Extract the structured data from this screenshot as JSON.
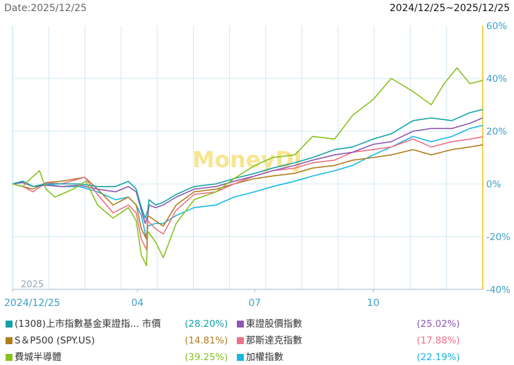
{
  "header": {
    "date_label": "Date:2025/12/25",
    "range_label": "2024/12/25~2025/12/25"
  },
  "colors": {
    "etf": "#13a3a6",
    "taiex_total_return": "#8e57b0",
    "sp500": "#b07d1c",
    "nasdaq": "#ef6f86",
    "sox": "#86c11e",
    "taiex": "#17b7e3",
    "axis": "#f4c10f",
    "grid": "#cfe8f3",
    "tick": "#3c9fc6",
    "watermark": "#f6e17d"
  },
  "chart_data": {
    "type": "line",
    "title": "",
    "watermark": "MoneyDJ",
    "year_label": "2025",
    "x_range": [
      "2024-12-25",
      "2025-12-25"
    ],
    "x_ticks": [
      {
        "date": "2024-12-25",
        "label": "2024/12/25"
      },
      {
        "date": "2025-04-01",
        "label": "04"
      },
      {
        "date": "2025-07-01",
        "label": "07"
      },
      {
        "date": "2025-10-01",
        "label": "10"
      }
    ],
    "y_axis": {
      "position": "right",
      "unit": "%",
      "ylim": [
        -40,
        60
      ],
      "ticks": [
        60,
        40,
        20,
        0,
        -20,
        -40
      ]
    },
    "y_tick_labels": [
      "60%",
      "40%",
      "20%",
      "0%",
      "-20%",
      "-40%"
    ],
    "series": [
      {
        "key": "etf",
        "name": "(1308)上市指數基金東證指... 市價",
        "final_label": "(28.20%)",
        "points": [
          [
            "2024-12-25",
            0
          ],
          [
            "2025-01-02",
            1
          ],
          [
            "2025-01-10",
            -1
          ],
          [
            "2025-01-20",
            0
          ],
          [
            "2025-02-01",
            0
          ],
          [
            "2025-02-15",
            0
          ],
          [
            "2025-03-01",
            -1
          ],
          [
            "2025-03-15",
            -1
          ],
          [
            "2025-03-25",
            1
          ],
          [
            "2025-03-31",
            -2
          ],
          [
            "2025-04-04",
            -9
          ],
          [
            "2025-04-07",
            -13
          ],
          [
            "2025-04-09",
            -10
          ],
          [
            "2025-04-10",
            -6
          ],
          [
            "2025-04-15",
            -8
          ],
          [
            "2025-04-21",
            -7
          ],
          [
            "2025-05-01",
            -4
          ],
          [
            "2025-05-15",
            -1
          ],
          [
            "2025-06-01",
            0
          ],
          [
            "2025-06-15",
            2
          ],
          [
            "2025-07-01",
            4
          ],
          [
            "2025-07-15",
            6
          ],
          [
            "2025-08-01",
            8
          ],
          [
            "2025-08-15",
            10
          ],
          [
            "2025-09-01",
            13
          ],
          [
            "2025-09-15",
            14
          ],
          [
            "2025-10-01",
            17
          ],
          [
            "2025-10-15",
            19
          ],
          [
            "2025-11-01",
            24
          ],
          [
            "2025-11-15",
            25
          ],
          [
            "2025-12-01",
            24
          ],
          [
            "2025-12-15",
            27
          ],
          [
            "2025-12-25",
            28.2
          ]
        ]
      },
      {
        "key": "taiex_total_return",
        "name": "東證股價指數",
        "final_label": "(25.02%)",
        "points": [
          [
            "2024-12-25",
            0
          ],
          [
            "2025-01-02",
            0.5
          ],
          [
            "2025-01-10",
            -1
          ],
          [
            "2025-01-20",
            -0.5
          ],
          [
            "2025-02-01",
            -1
          ],
          [
            "2025-02-15",
            -0.5
          ],
          [
            "2025-03-01",
            -2
          ],
          [
            "2025-03-15",
            -3
          ],
          [
            "2025-03-25",
            -1
          ],
          [
            "2025-03-31",
            -3
          ],
          [
            "2025-04-04",
            -10
          ],
          [
            "2025-04-07",
            -15
          ],
          [
            "2025-04-09",
            -12
          ],
          [
            "2025-04-10",
            -8
          ],
          [
            "2025-04-15",
            -9
          ],
          [
            "2025-04-21",
            -8
          ],
          [
            "2025-05-01",
            -5
          ],
          [
            "2025-05-15",
            -2
          ],
          [
            "2025-06-01",
            -1
          ],
          [
            "2025-06-15",
            1
          ],
          [
            "2025-07-01",
            3
          ],
          [
            "2025-07-15",
            5
          ],
          [
            "2025-08-01",
            7
          ],
          [
            "2025-08-15",
            9
          ],
          [
            "2025-09-01",
            11
          ],
          [
            "2025-09-15",
            12
          ],
          [
            "2025-10-01",
            15
          ],
          [
            "2025-10-15",
            16
          ],
          [
            "2025-11-01",
            20
          ],
          [
            "2025-11-15",
            21
          ],
          [
            "2025-12-01",
            21
          ],
          [
            "2025-12-15",
            23
          ],
          [
            "2025-12-25",
            25.02
          ]
        ]
      },
      {
        "key": "sp500",
        "name": "S＆P500 (SPY.US)",
        "final_label": "(14.81%)",
        "points": [
          [
            "2024-12-25",
            0
          ],
          [
            "2025-01-02",
            -1
          ],
          [
            "2025-01-10",
            -2
          ],
          [
            "2025-01-20",
            0.5
          ],
          [
            "2025-02-01",
            1
          ],
          [
            "2025-02-19",
            2.5
          ],
          [
            "2025-03-01",
            -2
          ],
          [
            "2025-03-13",
            -8
          ],
          [
            "2025-03-25",
            -5
          ],
          [
            "2025-03-31",
            -8
          ],
          [
            "2025-04-04",
            -17
          ],
          [
            "2025-04-08",
            -21
          ],
          [
            "2025-04-09",
            -12
          ],
          [
            "2025-04-15",
            -14
          ],
          [
            "2025-04-21",
            -16
          ],
          [
            "2025-05-01",
            -8
          ],
          [
            "2025-05-15",
            -3
          ],
          [
            "2025-06-01",
            -2
          ],
          [
            "2025-06-15",
            0
          ],
          [
            "2025-07-01",
            2
          ],
          [
            "2025-07-15",
            3
          ],
          [
            "2025-08-01",
            4
          ],
          [
            "2025-08-15",
            6
          ],
          [
            "2025-09-01",
            7
          ],
          [
            "2025-09-15",
            9
          ],
          [
            "2025-10-01",
            10
          ],
          [
            "2025-10-15",
            11
          ],
          [
            "2025-11-01",
            13
          ],
          [
            "2025-11-15",
            11
          ],
          [
            "2025-12-01",
            13
          ],
          [
            "2025-12-15",
            14
          ],
          [
            "2025-12-25",
            14.81
          ]
        ]
      },
      {
        "key": "nasdaq",
        "name": "那斯達克指數",
        "final_label": "(17.88%)",
        "points": [
          [
            "2024-12-25",
            0
          ],
          [
            "2025-01-02",
            -1
          ],
          [
            "2025-01-10",
            -3
          ],
          [
            "2025-01-20",
            0.5
          ],
          [
            "2025-02-01",
            0
          ],
          [
            "2025-02-19",
            2.5
          ],
          [
            "2025-03-01",
            -4
          ],
          [
            "2025-03-13",
            -11
          ],
          [
            "2025-03-25",
            -8
          ],
          [
            "2025-03-31",
            -11
          ],
          [
            "2025-04-04",
            -21
          ],
          [
            "2025-04-08",
            -25
          ],
          [
            "2025-04-09",
            -14
          ],
          [
            "2025-04-15",
            -17
          ],
          [
            "2025-04-21",
            -19
          ],
          [
            "2025-05-01",
            -10
          ],
          [
            "2025-05-15",
            -4
          ],
          [
            "2025-06-01",
            -3
          ],
          [
            "2025-06-15",
            0
          ],
          [
            "2025-07-01",
            3
          ],
          [
            "2025-07-15",
            5
          ],
          [
            "2025-08-01",
            6
          ],
          [
            "2025-08-15",
            8
          ],
          [
            "2025-09-01",
            9
          ],
          [
            "2025-09-15",
            12
          ],
          [
            "2025-10-01",
            13
          ],
          [
            "2025-10-15",
            14
          ],
          [
            "2025-11-01",
            17
          ],
          [
            "2025-11-15",
            14
          ],
          [
            "2025-12-01",
            16
          ],
          [
            "2025-12-15",
            17
          ],
          [
            "2025-12-25",
            17.88
          ]
        ]
      },
      {
        "key": "sox",
        "name": "費城半導體",
        "final_label": "(39.25%)",
        "points": [
          [
            "2024-12-25",
            0
          ],
          [
            "2025-01-02",
            -1
          ],
          [
            "2025-01-08",
            2
          ],
          [
            "2025-01-15",
            5
          ],
          [
            "2025-01-20",
            -2
          ],
          [
            "2025-01-27",
            -5
          ],
          [
            "2025-02-10",
            -2
          ],
          [
            "2025-02-20",
            1
          ],
          [
            "2025-03-01",
            -8
          ],
          [
            "2025-03-13",
            -13
          ],
          [
            "2025-03-25",
            -9
          ],
          [
            "2025-03-31",
            -14
          ],
          [
            "2025-04-04",
            -27
          ],
          [
            "2025-04-08",
            -31
          ],
          [
            "2025-04-09",
            -18
          ],
          [
            "2025-04-15",
            -22
          ],
          [
            "2025-04-21",
            -28
          ],
          [
            "2025-05-01",
            -15
          ],
          [
            "2025-05-15",
            -6
          ],
          [
            "2025-06-01",
            -3
          ],
          [
            "2025-06-15",
            2
          ],
          [
            "2025-07-01",
            7
          ],
          [
            "2025-07-15",
            10
          ],
          [
            "2025-08-01",
            11
          ],
          [
            "2025-08-15",
            18
          ],
          [
            "2025-09-01",
            17
          ],
          [
            "2025-09-15",
            26
          ],
          [
            "2025-10-01",
            32
          ],
          [
            "2025-10-15",
            40
          ],
          [
            "2025-11-01",
            35
          ],
          [
            "2025-11-15",
            30
          ],
          [
            "2025-11-25",
            38
          ],
          [
            "2025-12-05",
            44
          ],
          [
            "2025-12-15",
            38
          ],
          [
            "2025-12-25",
            39.25
          ]
        ]
      },
      {
        "key": "taiex",
        "name": "加權指數",
        "final_label": "(22.19%)",
        "points": [
          [
            "2024-12-25",
            0
          ],
          [
            "2025-01-02",
            1
          ],
          [
            "2025-01-10",
            -1
          ],
          [
            "2025-01-20",
            0
          ],
          [
            "2025-02-01",
            -1
          ],
          [
            "2025-02-15",
            -1
          ],
          [
            "2025-03-01",
            -3
          ],
          [
            "2025-03-15",
            -6
          ],
          [
            "2025-03-25",
            -5
          ],
          [
            "2025-03-31",
            -8
          ],
          [
            "2025-04-04",
            -12
          ],
          [
            "2025-04-08",
            -21
          ],
          [
            "2025-04-09",
            -16
          ],
          [
            "2025-04-15",
            -15
          ],
          [
            "2025-04-21",
            -15
          ],
          [
            "2025-05-01",
            -12
          ],
          [
            "2025-05-15",
            -9
          ],
          [
            "2025-06-01",
            -8
          ],
          [
            "2025-06-15",
            -5
          ],
          [
            "2025-07-01",
            -3
          ],
          [
            "2025-07-15",
            -1
          ],
          [
            "2025-08-01",
            1
          ],
          [
            "2025-08-15",
            3
          ],
          [
            "2025-09-01",
            5
          ],
          [
            "2025-09-15",
            7
          ],
          [
            "2025-10-01",
            11
          ],
          [
            "2025-10-15",
            14
          ],
          [
            "2025-11-01",
            18
          ],
          [
            "2025-11-15",
            16
          ],
          [
            "2025-12-01",
            18
          ],
          [
            "2025-12-15",
            21
          ],
          [
            "2025-12-25",
            22.19
          ]
        ]
      }
    ]
  }
}
